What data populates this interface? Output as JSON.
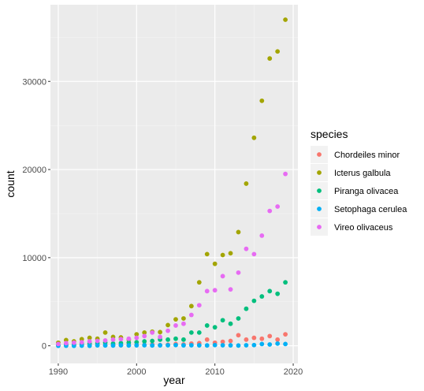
{
  "chart_data": {
    "type": "scatter",
    "title": "",
    "xlabel": "year",
    "ylabel": "count",
    "xlim": [
      1989,
      2020.6
    ],
    "ylim": [
      -2000,
      38700
    ],
    "xticks": [
      1990,
      2000,
      2010,
      2020
    ],
    "xtick_labels": [
      "1990",
      "2000",
      "2010",
      "2020"
    ],
    "yticks": [
      0,
      10000,
      20000,
      30000
    ],
    "ytick_labels": [
      "0",
      "10000",
      "20000",
      "30000"
    ],
    "grid": true,
    "legend_title": "species",
    "legend_position": "right",
    "x": [
      1990,
      1991,
      1992,
      1993,
      1994,
      1995,
      1996,
      1997,
      1998,
      1999,
      2000,
      2001,
      2002,
      2003,
      2004,
      2005,
      2006,
      2007,
      2008,
      2009,
      2010,
      2011,
      2012,
      2013,
      2014,
      2015,
      2016,
      2017,
      2018,
      2019
    ],
    "series": [
      {
        "name": "Chordeiles minor",
        "color": "#F8766D",
        "values": [
          50,
          40,
          60,
          50,
          70,
          80,
          90,
          70,
          60,
          80,
          100,
          90,
          150,
          80,
          120,
          200,
          150,
          250,
          300,
          700,
          350,
          450,
          550,
          1200,
          700,
          900,
          800,
          1100,
          700,
          1300
        ]
      },
      {
        "name": "Icterus galbula",
        "color": "#A3A500",
        "values": [
          350,
          650,
          500,
          750,
          900,
          800,
          1500,
          1000,
          950,
          700,
          1300,
          1500,
          1600,
          1550,
          2350,
          3000,
          3100,
          4500,
          7200,
          10400,
          9300,
          10300,
          10500,
          12900,
          18400,
          23600,
          27800,
          32600,
          33400,
          37000
        ]
      },
      {
        "name": "Piranga olivacea",
        "color": "#00BF7D",
        "values": [
          100,
          150,
          150,
          200,
          250,
          300,
          350,
          250,
          300,
          350,
          400,
          500,
          550,
          700,
          700,
          800,
          700,
          1500,
          1500,
          2300,
          2100,
          2900,
          2500,
          3100,
          4200,
          5100,
          5600,
          6200,
          5900,
          7200
        ]
      },
      {
        "name": "Setophaga cerulea",
        "color": "#00B0F6",
        "values": [
          0,
          10,
          0,
          20,
          0,
          50,
          40,
          30,
          60,
          40,
          50,
          60,
          40,
          50,
          60,
          80,
          50,
          60,
          50,
          40,
          80,
          60,
          50,
          30,
          60,
          80,
          200,
          150,
          250,
          200
        ]
      },
      {
        "name": "Vireo olivaceus",
        "color": "#E76BF3",
        "values": [
          200,
          300,
          350,
          400,
          500,
          550,
          600,
          700,
          750,
          800,
          900,
          1100,
          1500,
          1000,
          1700,
          2300,
          2500,
          3500,
          4600,
          6200,
          6300,
          7900,
          6400,
          8300,
          11000,
          10400,
          12500,
          15300,
          15800,
          19500
        ]
      }
    ]
  }
}
